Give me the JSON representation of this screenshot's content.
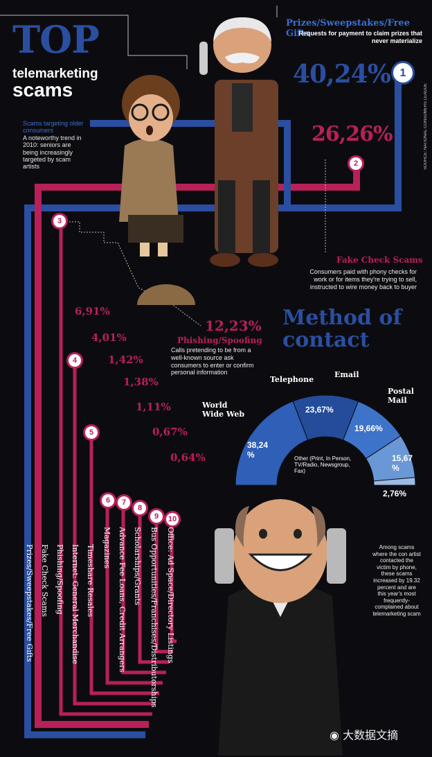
{
  "title": {
    "top": "TOP",
    "line2": "telemarketing",
    "line3": "scams"
  },
  "side_note": {
    "heading": "Scams targeting older consumers",
    "text": "A noteworthy trend in 2010: seniors are being increasingly targeted by scam artists"
  },
  "source": "SOURCE: NATIONAL CONSUMERS LEAGUE",
  "scam1": {
    "rank": "1",
    "heading": "Prizes/Sweepstakes/Free Gifts",
    "desc": "Requests for payment to claim prizes that never materialize",
    "pct": "40,24%"
  },
  "scam2": {
    "rank": "2",
    "pct": "26,26%",
    "heading": "Fake Check Scams",
    "desc": "Consumers paid with phony checks for work or for items they're trying to sell, instructed to wire money back to buyer"
  },
  "scam3": {
    "rank": "3",
    "pct": "12,23%",
    "heading": "Phishing/Spoofing",
    "desc": "Calls pretending to be from a well-known source ask consumers to enter or confirm personal information"
  },
  "phone_note": "Among scams where the con artist contacted the victim by phone, these scams increased by 19.32 percent and are this year's most frequently-complained about telemarketing scam",
  "method": {
    "title_line1": "Method of",
    "title_line2": "contact"
  },
  "watermark": "大数据文摘",
  "chart_data": [
    {
      "type": "bar",
      "title": "TOP telemarketing scams",
      "categories": [
        "Prizes/Sweepstakes/Free Gifts",
        "Fake Check Scams",
        "Phishing/Spoofing",
        "Internet: General Merchandise",
        "Timeshare Resales",
        "Magazines",
        "Advance Fee Loans, Credit Arrangers",
        "Scholarships/Grants",
        "Bus Opportunities/Franchises/Distributorships",
        "Office: Ad Space/Directory Listings"
      ],
      "ranks": [
        "1",
        "2",
        "3",
        "4",
        "5",
        "6",
        "7",
        "8",
        "9",
        "10"
      ],
      "values": [
        40.24,
        26.26,
        12.23,
        6.91,
        4.01,
        1.42,
        1.38,
        1.11,
        0.67,
        0.64
      ],
      "value_labels": [
        "40,24%",
        "26,26%",
        "12,23%",
        "6,91%",
        "4,01%",
        "1,42%",
        "1,38%",
        "1,11%",
        "0,67%",
        "0,64%"
      ]
    },
    {
      "type": "pie",
      "title": "Method of contact",
      "categories": [
        "World Wide Web",
        "Telephone",
        "Email",
        "Postal Mail",
        "Other (Print, In Person, TV/Radio, Newsgroup, Fax)"
      ],
      "values": [
        38.24,
        23.67,
        19.66,
        15.67,
        2.76
      ],
      "value_labels": [
        "38,24 %",
        "23,67%",
        "19,66%",
        "15,67 %",
        "2,76%"
      ],
      "colors": [
        "#2f5fb6",
        "#254c9a",
        "#3d73c8",
        "#6a98d6",
        "#9cbbe4"
      ]
    }
  ]
}
